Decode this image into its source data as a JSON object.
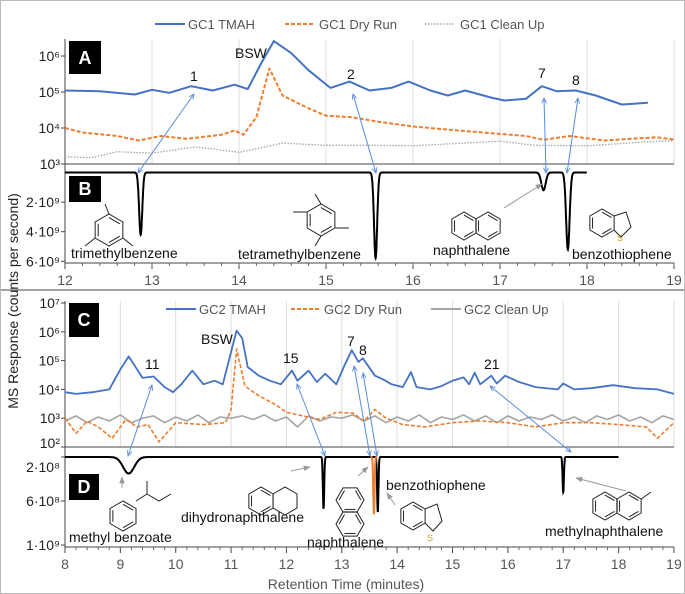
{
  "y_axis_label": "MS Response (counts per second)",
  "x_axis_label": "Retention Time (minutes)",
  "colors": {
    "tmah": "#4472C4",
    "dry_run": "#ED7D31",
    "clean_up_gc1": "#A5A5A5",
    "clean_up_gc2": "#A5A5A5",
    "detector": "#000000",
    "arrow": "#5B8BD9",
    "gray_arrow": "#999999",
    "panel_label_bg": "#000000"
  },
  "chart_data": [
    {
      "panel": "A",
      "type": "line",
      "y_scale": "log",
      "ylim": [
        1000,
        3000000
      ],
      "xlim": [
        12,
        19
      ],
      "grid": "vertical",
      "legend": "top",
      "y_tick_labels": [
        "10⁶",
        "10⁵",
        "10⁴",
        "10³"
      ],
      "y_tick_values": [
        1000000,
        100000,
        10000,
        1000
      ],
      "series": [
        {
          "name": "GC1 TMAH",
          "style": "solid",
          "x": [
            12,
            12.4,
            12.8,
            13.0,
            13.2,
            13.45,
            13.7,
            13.95,
            14.1,
            14.25,
            14.4,
            14.6,
            14.8,
            15.05,
            15.27,
            15.5,
            15.75,
            15.95,
            16.2,
            16.4,
            16.6,
            16.9,
            17.05,
            17.3,
            17.48,
            17.65,
            17.87,
            18.1,
            18.4,
            18.7
          ],
          "y": [
            110000,
            105000,
            85000,
            115000,
            95000,
            145000,
            110000,
            160000,
            120000,
            600000,
            2600000,
            1200000,
            400000,
            130000,
            195000,
            110000,
            130000,
            195000,
            110000,
            80000,
            110000,
            70000,
            58000,
            65000,
            145000,
            105000,
            110000,
            80000,
            45000,
            50000
          ]
        },
        {
          "name": "GC1 Dry Run",
          "style": "dashed",
          "x": [
            12,
            12.2,
            12.6,
            12.85,
            13.1,
            13.4,
            13.8,
            13.95,
            14.05,
            14.2,
            14.35,
            14.5,
            14.8,
            15.0,
            15.3,
            15.6,
            16.0,
            16.4,
            16.8,
            17.3,
            17.5,
            17.8,
            18.2,
            18.5,
            18.8,
            19
          ],
          "y": [
            10000,
            7500,
            6000,
            4500,
            6000,
            5000,
            6500,
            8500,
            6500,
            20000,
            450000,
            80000,
            35000,
            22000,
            20000,
            15000,
            11000,
            9000,
            7500,
            6000,
            4700,
            6000,
            4500,
            5000,
            5500,
            4800
          ]
        },
        {
          "name": "GC1 Clean Up",
          "style": "dotted",
          "x": [
            12,
            12.3,
            12.6,
            13,
            13.5,
            14,
            14.5,
            15,
            15.5,
            16,
            16.5,
            17,
            17.4,
            18,
            18.6,
            19
          ],
          "y": [
            1600,
            1500,
            2200,
            2000,
            3000,
            2100,
            3800,
            3300,
            3300,
            3200,
            3700,
            4300,
            3300,
            3200,
            4000,
            4500
          ]
        }
      ],
      "annotations": [
        "BSW",
        "1",
        "2",
        "7",
        "8"
      ]
    },
    {
      "panel": "B",
      "type": "line",
      "y_scale": "linear",
      "y_inverted": true,
      "ylim": [
        0,
        6000000000
      ],
      "xlim": [
        12,
        19
      ],
      "x_tick_labels": [
        "12",
        "13",
        "14",
        "15",
        "16",
        "17",
        "18",
        "19"
      ],
      "y_tick_labels": [
        "2·10⁹",
        "4·10⁹",
        "6·10⁹"
      ],
      "y_tick_values": [
        2000000000,
        4000000000,
        6000000000
      ],
      "trace_range": [
        12,
        18
      ],
      "peaks": [
        {
          "rt": 12.87,
          "height": 4200000000,
          "width": 0.018,
          "compound": "trimethylbenzene"
        },
        {
          "rt": 15.57,
          "height": 5800000000,
          "width": 0.018,
          "compound": "tetramethylbenzene"
        },
        {
          "rt": 17.5,
          "height": 1200000000,
          "width": 0.025,
          "compound": "naphthalene"
        },
        {
          "rt": 17.78,
          "height": 5200000000,
          "width": 0.02,
          "compound": "benzothiophene"
        }
      ]
    },
    {
      "panel": "C",
      "type": "line",
      "y_scale": "log",
      "ylim": [
        100,
        10000000
      ],
      "xlim": [
        8,
        19
      ],
      "grid": "vertical",
      "legend": "top",
      "y_tick_labels": [
        "10⁷",
        "10⁶",
        "10⁵",
        "10⁴",
        "10³",
        "10²"
      ],
      "y_tick_values": [
        10000000,
        1000000,
        100000,
        10000,
        1000,
        100
      ],
      "series": [
        {
          "name": "GC2 TMAH",
          "style": "solid",
          "x": [
            8,
            8.2,
            8.5,
            8.8,
            9.0,
            9.15,
            9.3,
            9.4,
            9.6,
            9.8,
            9.95,
            10.1,
            10.3,
            10.5,
            10.7,
            10.85,
            11.0,
            11.1,
            11.2,
            11.3,
            11.5,
            11.7,
            11.9,
            12.1,
            12.2,
            12.4,
            12.55,
            12.7,
            12.9,
            13.05,
            13.18,
            13.3,
            13.38,
            13.6,
            13.75,
            13.9,
            14.1,
            14.25,
            14.35,
            14.6,
            14.8,
            15.0,
            15.2,
            15.3,
            15.4,
            15.5,
            15.7,
            15.8,
            15.95,
            16.2,
            16.5,
            16.9,
            17.0,
            17.2,
            17.5,
            17.9,
            18.3,
            18.7,
            19
          ],
          "y": [
            8000,
            7000,
            8000,
            10000,
            50000,
            140000,
            50000,
            25000,
            28000,
            12000,
            8000,
            15000,
            45000,
            15000,
            20000,
            15000,
            200000,
            1100000,
            600000,
            60000,
            30000,
            20000,
            15000,
            45000,
            20000,
            45000,
            18000,
            35000,
            15000,
            70000,
            230000,
            90000,
            120000,
            30000,
            22000,
            15000,
            12000,
            40000,
            12000,
            10000,
            13000,
            20000,
            26000,
            15000,
            38000,
            15000,
            30000,
            16000,
            30000,
            18000,
            12000,
            10000,
            16000,
            10000,
            11000,
            14000,
            11000,
            10000,
            7000
          ]
        },
        {
          "name": "GC2 Dry Run",
          "style": "dashed",
          "x": [
            8,
            8.2,
            8.4,
            8.6,
            8.85,
            9.1,
            9.3,
            9.5,
            9.7,
            10,
            10.5,
            10.9,
            11.0,
            11.1,
            11.25,
            11.5,
            11.8,
            12.0,
            12.3,
            12.6,
            12.9,
            13.2,
            13.4,
            13.6,
            13.8,
            14.1,
            14.5,
            15,
            15.5,
            16,
            16.5,
            17,
            17.5,
            18,
            18.5,
            18.7,
            19
          ],
          "y": [
            1000,
            300,
            800,
            500,
            200,
            900,
            500,
            600,
            150,
            700,
            600,
            700,
            2000,
            250000,
            13000,
            6000,
            3000,
            1600,
            1200,
            900,
            1600,
            1500,
            800,
            2000,
            1000,
            600,
            500,
            700,
            800,
            700,
            500,
            700,
            700,
            600,
            500,
            200,
            700
          ]
        },
        {
          "name": "GC2 Clean Up",
          "style": "solid",
          "x": [
            8,
            8.2,
            8.4,
            8.6,
            8.8,
            9.0,
            9.2,
            9.4,
            9.6,
            9.8,
            10,
            10.2,
            10.4,
            10.6,
            10.8,
            11,
            11.2,
            11.4,
            11.6,
            11.8,
            12,
            12.2,
            12.4,
            12.6,
            12.8,
            13,
            13.2,
            13.4,
            13.6,
            13.8,
            14,
            14.2,
            14.4,
            14.6,
            14.8,
            15,
            15.2,
            15.4,
            15.6,
            15.8,
            16,
            16.2,
            16.4,
            16.6,
            16.8,
            17,
            17.2,
            17.4,
            17.6,
            17.8,
            18,
            18.2,
            18.4,
            18.6,
            18.8,
            19
          ],
          "y": [
            800,
            1200,
            700,
            1100,
            800,
            1300,
            700,
            1000,
            1200,
            700,
            1100,
            800,
            1300,
            700,
            1100,
            1000,
            1200,
            900,
            1300,
            800,
            1100,
            500,
            1200,
            800,
            1100,
            1000,
            1300,
            800,
            1200,
            700,
            1100,
            800,
            1300,
            700,
            1100,
            900,
            1300,
            800,
            1200,
            700,
            1200,
            800,
            1100,
            900,
            1300,
            800,
            1100,
            700,
            1200,
            900,
            1300,
            800,
            1100,
            700,
            1200,
            900
          ]
        }
      ],
      "annotations": [
        "BSW",
        "11",
        "15",
        "7",
        "8",
        "21"
      ]
    },
    {
      "panel": "D",
      "type": "line",
      "y_scale": "linear",
      "y_inverted": true,
      "ylim": [
        200000000,
        1000000000
      ],
      "xlim": [
        8,
        19
      ],
      "x_tick_labels": [
        "8",
        "9",
        "10",
        "11",
        "12",
        "13",
        "14",
        "15",
        "16",
        "17",
        "18",
        "19"
      ],
      "y_tick_labels": [
        "2·10⁸",
        "6·10⁸",
        "1·10⁹"
      ],
      "y_tick_values": [
        200000000,
        600000000,
        1000000000
      ],
      "trace_range": [
        8,
        18
      ],
      "baseline": 200000000,
      "peaks": [
        {
          "rt": 9.15,
          "height": 150000000,
          "width": 0.1,
          "compound": "methyl benzoate"
        },
        {
          "rt": 12.67,
          "height": 470000000,
          "width": 0.012,
          "compound": "dihydronaphthalene"
        },
        {
          "rt": 13.58,
          "height": 520000000,
          "width": 0.012,
          "compound": "naphthalene",
          "highlight": true
        },
        {
          "rt": 13.65,
          "height": 500000000,
          "width": 0.012,
          "compound": "benzothiophene"
        },
        {
          "rt": 17.0,
          "height": 320000000,
          "width": 0.012,
          "compound": "methylnaphthalene"
        }
      ]
    }
  ],
  "panels": {
    "a": "A",
    "b": "B",
    "c": "C",
    "d": "D"
  },
  "legend_gc1": [
    "GC1 TMAH",
    "GC1 Dry Run",
    "GC1 Clean Up"
  ],
  "legend_gc2": [
    "GC2 TMAH",
    "GC2 Dry Run",
    "GC2 Clean Up"
  ],
  "peak_labels": {
    "a": {
      "bsw": "BSW",
      "p1": "1",
      "p2": "2",
      "p7": "7",
      "p8": "8"
    },
    "c": {
      "bsw": "BSW",
      "p11": "11",
      "p15": "15",
      "p7": "7",
      "p8": "8",
      "p21": "21"
    }
  },
  "compounds_b": [
    "trimethylbenzene",
    "tetramethylbenzene",
    "naphthalene",
    "benzothiophene"
  ],
  "compounds_d": [
    "methyl benzoate",
    "dihydronaphthalene",
    "naphthalene",
    "benzothiophene",
    "methylnaphthalene"
  ],
  "sulfur_label": "S"
}
